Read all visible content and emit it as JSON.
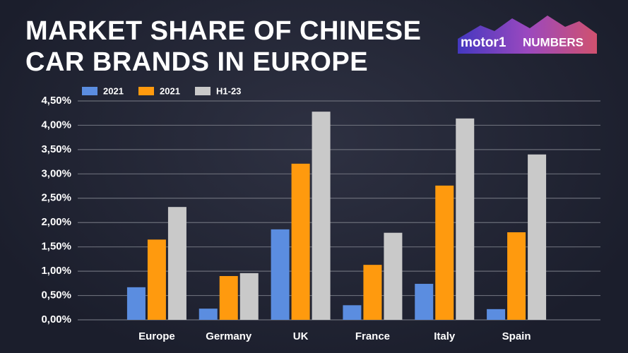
{
  "chart_data": {
    "type": "bar",
    "title": "MARKET SHARE OF CHINESE CAR BRANDS IN EUROPE",
    "brand": "motor1",
    "brand_sub": "NUMBERS",
    "categories": [
      "Europe",
      "Germany",
      "UK",
      "France",
      "Italy",
      "Spain"
    ],
    "series": [
      {
        "name": "2021",
        "color": "#5b8de0",
        "values": [
          0.67,
          0.23,
          1.86,
          0.3,
          0.74,
          0.22
        ]
      },
      {
        "name": "2021",
        "color": "#ff9a0e",
        "values": [
          1.65,
          0.9,
          3.21,
          1.13,
          2.76,
          1.8
        ]
      },
      {
        "name": "H1-23",
        "color": "#c9c9c9",
        "values": [
          2.32,
          0.96,
          4.28,
          1.79,
          4.14,
          3.4
        ]
      }
    ],
    "ylim": [
      0,
      4.5
    ],
    "yticks": [
      {
        "value": 0,
        "label": "0,00%"
      },
      {
        "value": 0.5,
        "label": "0,50%"
      },
      {
        "value": 1,
        "label": "1,00%"
      },
      {
        "value": 1.5,
        "label": "1,50%"
      },
      {
        "value": 2,
        "label": "2,00%"
      },
      {
        "value": 2.5,
        "label": "2,50%"
      },
      {
        "value": 3,
        "label": "3,00%"
      },
      {
        "value": 3.5,
        "label": "3,50%"
      },
      {
        "value": 4,
        "label": "4,00%"
      },
      {
        "value": 4.5,
        "label": "4,50%"
      }
    ],
    "grid": true
  }
}
